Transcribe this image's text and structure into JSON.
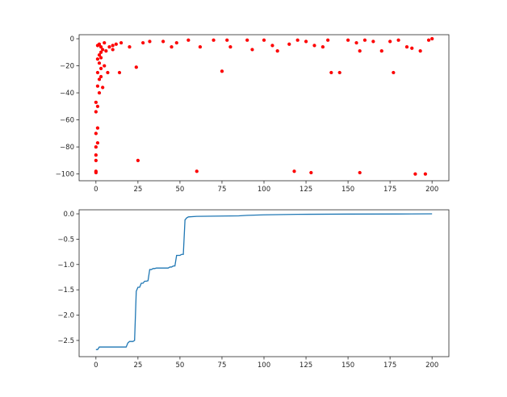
{
  "chart_data": [
    {
      "type": "scatter",
      "title": "",
      "xlabel": "",
      "ylabel": "",
      "xlim": [
        -10,
        210
      ],
      "ylim": [
        -105,
        3
      ],
      "x_ticks": [
        0,
        25,
        50,
        75,
        100,
        125,
        150,
        175,
        200
      ],
      "y_ticks": [
        0,
        -20,
        -40,
        -60,
        -80,
        -100
      ],
      "grid": false,
      "legend": "none",
      "colors": {
        "points": "#ff0000",
        "underlay": "#1f77b4"
      },
      "series": [
        {
          "points": [
            [
              0,
              -99
            ],
            [
              0,
              -98
            ],
            [
              0,
              -90
            ],
            [
              0,
              -86
            ],
            [
              0,
              -80
            ],
            [
              1,
              -77
            ],
            [
              0,
              -70
            ],
            [
              1,
              -66
            ],
            [
              0,
              -54
            ],
            [
              1,
              -50
            ],
            [
              0,
              -47
            ],
            [
              2,
              -40
            ],
            [
              1,
              -35
            ],
            [
              2,
              -30
            ],
            [
              1,
              -25
            ],
            [
              3,
              -22
            ],
            [
              2,
              -18
            ],
            [
              1,
              -15
            ],
            [
              2,
              -12
            ],
            [
              3,
              -10
            ],
            [
              4,
              -8
            ],
            [
              3,
              -6
            ],
            [
              1,
              -5
            ],
            [
              2,
              -4
            ],
            [
              5,
              -3
            ],
            [
              4,
              -36
            ],
            [
              3,
              -28
            ],
            [
              5,
              -20
            ],
            [
              3,
              -14
            ],
            [
              6,
              -9
            ],
            [
              8,
              -6
            ],
            [
              10,
              -5
            ],
            [
              12,
              -4
            ],
            [
              15,
              -3
            ],
            [
              7,
              -25
            ],
            [
              10,
              -8
            ],
            [
              14,
              -25
            ],
            [
              20,
              -6
            ],
            [
              24,
              -21
            ],
            [
              25,
              -90
            ],
            [
              28,
              -3
            ],
            [
              32,
              -2
            ],
            [
              40,
              -2
            ],
            [
              45,
              -6
            ],
            [
              48,
              -3
            ],
            [
              55,
              -1
            ],
            [
              60,
              -98
            ],
            [
              62,
              -6
            ],
            [
              70,
              -1
            ],
            [
              75,
              -24
            ],
            [
              78,
              -1
            ],
            [
              80,
              -6
            ],
            [
              90,
              -1
            ],
            [
              93,
              -8
            ],
            [
              100,
              -1
            ],
            [
              105,
              -5
            ],
            [
              108,
              -9
            ],
            [
              115,
              -4
            ],
            [
              118,
              -98
            ],
            [
              120,
              -1
            ],
            [
              125,
              -2
            ],
            [
              128,
              -99
            ],
            [
              130,
              -5
            ],
            [
              135,
              -6
            ],
            [
              138,
              -1
            ],
            [
              140,
              -25
            ],
            [
              145,
              -25
            ],
            [
              150,
              -1
            ],
            [
              155,
              -3
            ],
            [
              157,
              -9
            ],
            [
              157,
              -99
            ],
            [
              160,
              -1
            ],
            [
              165,
              -2
            ],
            [
              170,
              -9
            ],
            [
              175,
              -2
            ],
            [
              177,
              -25
            ],
            [
              180,
              -1
            ],
            [
              185,
              -6
            ],
            [
              188,
              -7
            ],
            [
              190,
              -100
            ],
            [
              193,
              -9
            ],
            [
              196,
              -100
            ],
            [
              198,
              -1
            ],
            [
              200,
              0
            ]
          ]
        }
      ]
    },
    {
      "type": "line",
      "title": "",
      "xlabel": "",
      "ylabel": "",
      "xlim": [
        -10,
        210
      ],
      "ylim": [
        -2.82,
        0.08
      ],
      "x_ticks": [
        0,
        25,
        50,
        75,
        100,
        125,
        150,
        175,
        200
      ],
      "y_ticks": [
        0.0,
        -0.5,
        -1.0,
        -1.5,
        -2.0,
        -2.5
      ],
      "grid": false,
      "legend": "none",
      "colors": {
        "line": "#1f77b4"
      },
      "series": [
        {
          "x": [
            0,
            1,
            2,
            3,
            18,
            19,
            20,
            22,
            23,
            24,
            25,
            26,
            27,
            28,
            29,
            30,
            31,
            32,
            33,
            34,
            35,
            36,
            43,
            44,
            45,
            46,
            47,
            48,
            49,
            50,
            51,
            52,
            53,
            54,
            55,
            60,
            85,
            90,
            100,
            120,
            150,
            180,
            200
          ],
          "y": [
            -2.68,
            -2.68,
            -2.63,
            -2.63,
            -2.63,
            -2.55,
            -2.52,
            -2.52,
            -2.5,
            -1.53,
            -1.45,
            -1.45,
            -1.37,
            -1.37,
            -1.33,
            -1.33,
            -1.32,
            -1.1,
            -1.1,
            -1.08,
            -1.08,
            -1.07,
            -1.07,
            -1.05,
            -1.05,
            -1.03,
            -1.03,
            -0.82,
            -0.82,
            -0.82,
            -0.8,
            -0.8,
            -0.12,
            -0.08,
            -0.06,
            -0.05,
            -0.04,
            -0.03,
            -0.02,
            -0.01,
            -0.005,
            -0.003,
            0.0
          ]
        }
      ]
    }
  ]
}
